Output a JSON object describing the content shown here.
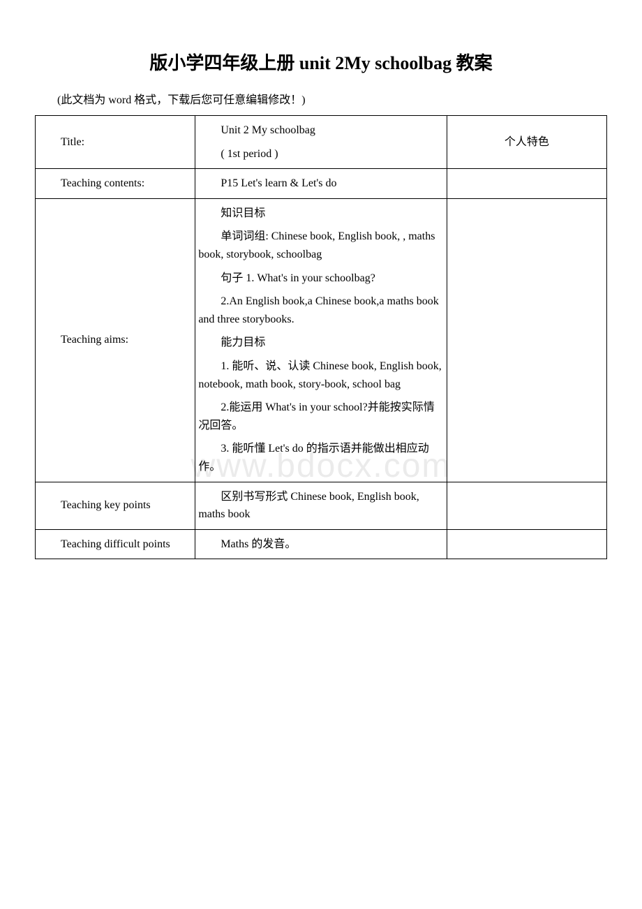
{
  "watermark": "www.bdocx.com",
  "title": "版小学四年级上册 unit 2My schoolbag 教案",
  "note": "(此文档为 word 格式，下载后您可任意编辑修改！)",
  "table": {
    "rows": [
      {
        "label": "Title:",
        "content": [
          "Unit 2 My schoolbag",
          "( 1st period )"
        ],
        "side": "个人特色"
      },
      {
        "label": "Teaching contents:",
        "content": [
          "P15 Let's learn & Let's do"
        ],
        "side": ""
      },
      {
        "label": "Teaching aims:",
        "content": [
          "知识目标",
          "单词词组: Chinese book, English book, , maths book, storybook, schoolbag",
          "句子 1. What's in your schoolbag?",
          "2.An English book,a Chinese book,a maths book and three storybooks.",
          "能力目标",
          "1. 能听、说、认读 Chinese book, English book, notebook, math book, story-book, school bag",
          "2.能运用 What's in your school?并能按实际情况回答。",
          "3. 能听懂 Let's do 的指示语并能做出相应动作。"
        ],
        "side": ""
      },
      {
        "label": "Teaching key points",
        "content": [
          "区别书写形式 Chinese book, English book, maths book"
        ],
        "side": ""
      },
      {
        "label": "Teaching difficult points",
        "content": [
          "Maths 的发音。"
        ],
        "side": ""
      }
    ]
  }
}
